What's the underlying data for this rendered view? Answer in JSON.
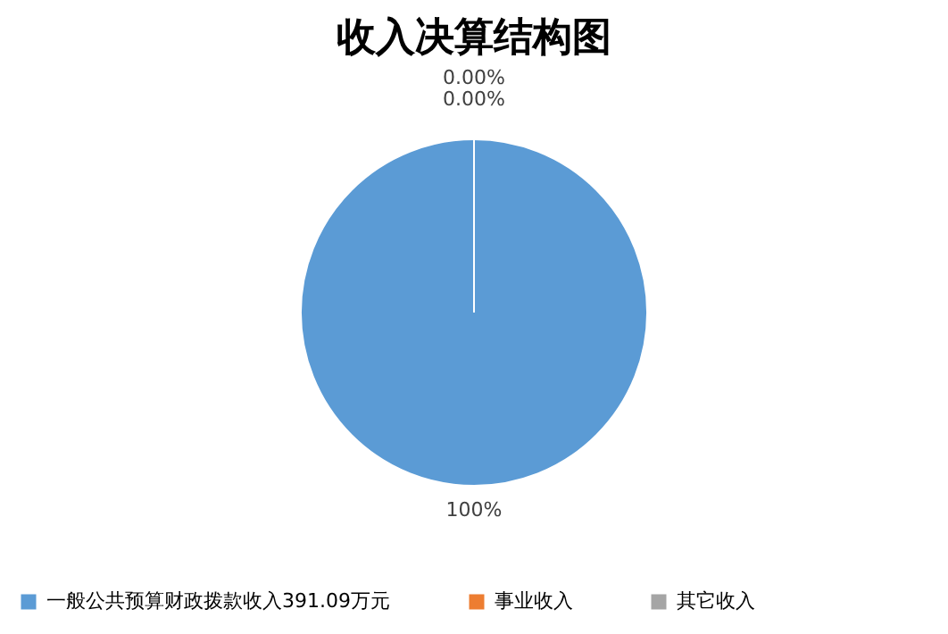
{
  "chart_data": {
    "type": "pie",
    "title": "收入决算结构图",
    "categories": [
      "一般公共预算财政拨款收入391.09万元",
      "事业收入",
      "其它收入"
    ],
    "values": [
      100,
      0,
      0
    ],
    "colors": [
      "#5b9bd5",
      "#ed7d31",
      "#a5a5a5"
    ],
    "value_labels": [
      "100%",
      "0.00%",
      "0.00%"
    ],
    "legend": "bottom"
  }
}
